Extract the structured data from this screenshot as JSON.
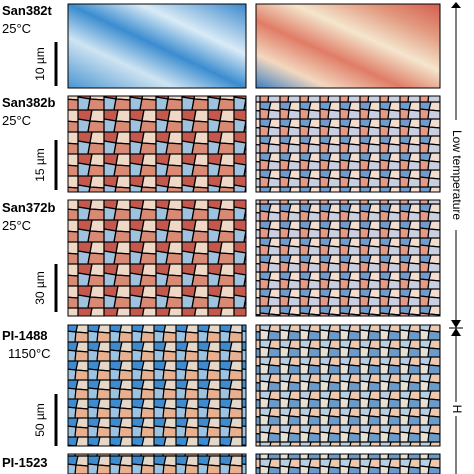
{
  "rows": [
    {
      "sample": "San382t",
      "temperature": "25°C",
      "scale_bar": "10 µm"
    },
    {
      "sample": "San382b",
      "temperature": "25°C",
      "scale_bar": "15 µm"
    },
    {
      "sample": "San372b",
      "temperature": "25°C",
      "scale_bar": "30 µm"
    },
    {
      "sample": "PI-1488",
      "temperature": "1150°C",
      "scale_bar": "50 µm"
    },
    {
      "sample": "PI-1523"
    }
  ],
  "side_labels": [
    "Low temperature",
    "H"
  ]
}
